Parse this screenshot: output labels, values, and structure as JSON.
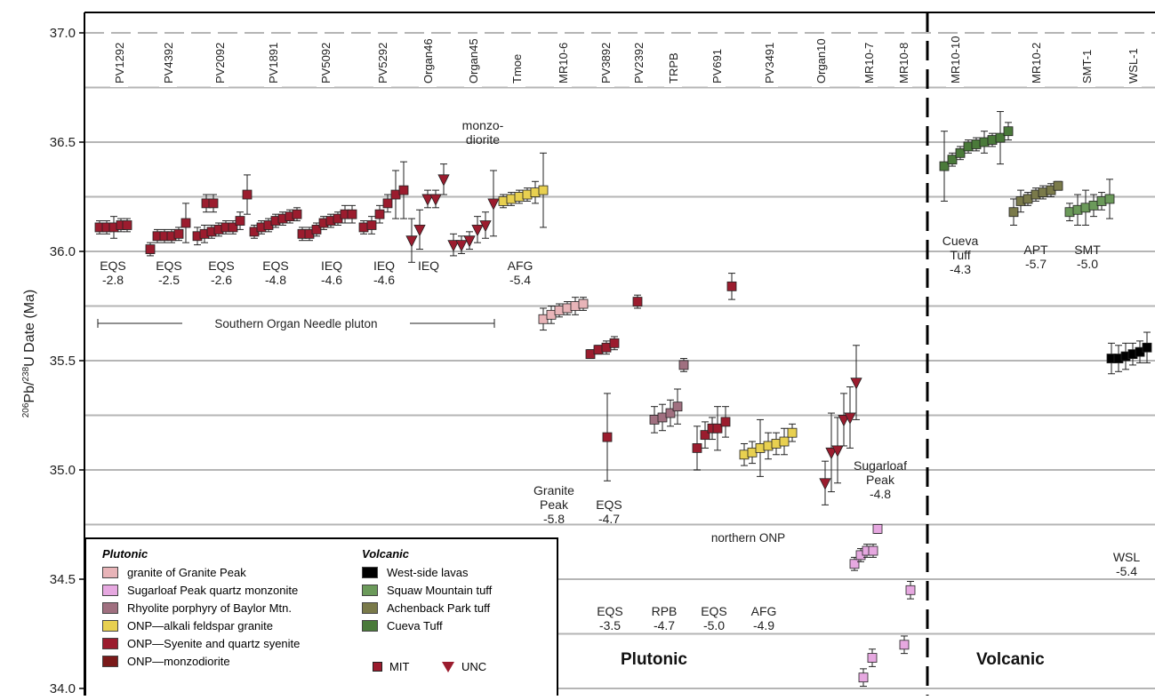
{
  "chart_data": {
    "type": "scatter",
    "ylabel_sup1": "206",
    "ylabel_mid": "Pb/",
    "ylabel_sup2": "238",
    "ylabel_end": "U Date (Ma)",
    "ylim": [
      34.0,
      37.0
    ],
    "yticks": [
      "34.0",
      "34.5",
      "35.0",
      "35.5",
      "36.0",
      "36.5",
      "37.0"
    ],
    "ytick_values": [
      34.0,
      34.5,
      35.0,
      35.5,
      36.0,
      36.5,
      37.0
    ],
    "grid": true,
    "colors": {
      "granite_peak": "#e8b4b8",
      "sugarloaf": "#e6a8e0",
      "rhyolite": "#a07080",
      "afg": "#e8d050",
      "syenite": "#9b1c2e",
      "monzodiorite": "#7a1a1a",
      "west_side": "#000000",
      "squaw": "#6b9a5a",
      "achenback": "#7a7a4a",
      "cueva": "#4a7a3a"
    },
    "samples": [
      {
        "id": "PV1292",
        "fill": "#9b1c2e",
        "shape": "square",
        "values": [
          36.11,
          36.11,
          36.11,
          36.12,
          36.12,
          36.22,
          36.22
        ],
        "err": [
          0.03,
          0.03,
          0.05,
          0.03,
          0.03,
          0.04,
          0.04
        ]
      },
      {
        "id": "PV4392",
        "fill": "#9b1c2e",
        "shape": "square",
        "values": [
          36.01,
          36.07,
          36.07,
          36.07,
          36.08,
          36.13
        ],
        "err": [
          0.03,
          0.03,
          0.03,
          0.03,
          0.03,
          0.09
        ]
      },
      {
        "id": "PV2092",
        "fill": "#9b1c2e",
        "shape": "square",
        "values": [
          36.07,
          36.08,
          36.09,
          36.1,
          36.11,
          36.11,
          36.14,
          36.26
        ],
        "err": [
          0.04,
          0.04,
          0.03,
          0.03,
          0.03,
          0.03,
          0.04,
          0.09
        ]
      },
      {
        "id": "PV1891",
        "fill": "#9b1c2e",
        "shape": "square",
        "values": [
          36.09,
          36.11,
          36.12,
          36.14,
          36.15,
          36.16,
          36.17
        ],
        "err": [
          0.03,
          0.03,
          0.03,
          0.03,
          0.03,
          0.03,
          0.03
        ]
      },
      {
        "id": "PV5092",
        "fill": "#9b1c2e",
        "shape": "square",
        "values": [
          36.08,
          36.08,
          36.1,
          36.13,
          36.14,
          36.15,
          36.17,
          36.17
        ],
        "err": [
          0.03,
          0.03,
          0.03,
          0.03,
          0.03,
          0.03,
          0.04,
          0.04
        ]
      },
      {
        "id": "PV5292",
        "fill": "#9b1c2e",
        "shape": "square",
        "values": [
          36.11,
          36.12,
          36.17,
          36.22,
          36.26,
          36.28
        ],
        "err": [
          0.03,
          0.04,
          0.04,
          0.04,
          0.11,
          0.13
        ]
      },
      {
        "id": "Organ46",
        "fill": "#9b1c2e",
        "shape": "triangle",
        "values": [
          36.05,
          36.1,
          36.24,
          36.24,
          36.33
        ],
        "err": [
          0.1,
          0.09,
          0.04,
          0.04,
          0.07
        ]
      },
      {
        "id": "Organ45",
        "fill": "#9b1c2e",
        "shape": "triangle",
        "values": [
          36.03,
          36.03,
          36.05,
          36.1,
          36.12,
          36.22
        ],
        "err": [
          0.05,
          0.04,
          0.04,
          0.06,
          0.06,
          0.15
        ]
      },
      {
        "id": "Tmoe",
        "fill": "#e8d050",
        "shape": "square",
        "values": [
          36.23,
          36.24,
          36.25,
          36.26,
          36.27,
          36.28
        ],
        "err": [
          0.03,
          0.03,
          0.03,
          0.03,
          0.05,
          0.17
        ]
      },
      {
        "id": "MR10-6",
        "fill": "#e8b4b8",
        "shape": "square",
        "values": [
          35.69,
          35.71,
          35.73,
          35.74,
          35.75,
          35.76
        ],
        "err": [
          0.05,
          0.04,
          0.03,
          0.03,
          0.04,
          0.03
        ]
      },
      {
        "id": "PV3892",
        "fill": "#9b1c2e",
        "shape": "square",
        "values": [
          35.53,
          35.55,
          35.56,
          35.58
        ],
        "err": [
          0.02,
          0.02,
          0.03,
          0.03
        ]
      },
      {
        "id": "PV2392",
        "fill": "#9b1c2e",
        "shape": "square",
        "values": [
          35.77,
          35.15
        ],
        "err": [
          0.03,
          0.2
        ]
      },
      {
        "id": "TRPB",
        "fill": "#a07080",
        "shape": "square",
        "values": [
          35.23,
          35.24,
          35.26,
          35.29,
          35.48
        ],
        "err": [
          0.06,
          0.06,
          0.06,
          0.08,
          0.03
        ]
      },
      {
        "id": "PV691",
        "fill": "#9b1c2e",
        "shape": "square",
        "values": [
          35.1,
          35.16,
          35.19,
          35.19,
          35.22,
          35.84
        ],
        "err": [
          0.1,
          0.06,
          0.05,
          0.1,
          0.07,
          0.06
        ]
      },
      {
        "id": "PV3491",
        "fill": "#e8d050",
        "shape": "square",
        "values": [
          35.07,
          35.08,
          35.1,
          35.11,
          35.12,
          35.13,
          35.17
        ],
        "err": [
          0.05,
          0.05,
          0.13,
          0.06,
          0.05,
          0.06,
          0.04
        ]
      },
      {
        "id": "Organ10",
        "fill": "#9b1c2e",
        "shape": "triangle",
        "values": [
          34.94,
          35.08,
          35.09,
          35.23,
          35.24,
          35.4
        ],
        "err": [
          0.1,
          0.18,
          0.15,
          0.12,
          0.14,
          0.17
        ]
      },
      {
        "id": "MR10-7",
        "fill": "#e6a8e0",
        "shape": "square",
        "values": [
          34.57,
          34.61,
          34.63,
          34.63
        ],
        "err": [
          0.03,
          0.03,
          0.03,
          0.03
        ]
      },
      {
        "id": "MR10-8",
        "fill": "#e6a8e0",
        "shape": "square",
        "values": [
          34.73,
          34.45,
          34.2,
          34.14,
          34.05
        ],
        "err": [
          0.02,
          0.04,
          0.04,
          0.04,
          0.04
        ]
      },
      {
        "id": "MR10-10",
        "fill": "#4a7a3a",
        "shape": "square",
        "values": [
          36.39,
          36.42,
          36.45,
          36.48,
          36.49,
          36.5,
          36.51,
          36.52,
          36.55
        ],
        "err": [
          0.16,
          0.03,
          0.03,
          0.03,
          0.03,
          0.05,
          0.03,
          0.12,
          0.04
        ]
      },
      {
        "id": "MR10-2",
        "fill": "#7a7a4a",
        "shape": "square",
        "values": [
          36.18,
          36.23,
          36.24,
          36.26,
          36.27,
          36.28,
          36.3
        ],
        "err": [
          0.06,
          0.05,
          0.03,
          0.03,
          0.03,
          0.03,
          0.02
        ]
      },
      {
        "id": "SMT-1",
        "fill": "#6b9a5a",
        "shape": "square",
        "values": [
          36.18,
          36.19,
          36.2,
          36.21,
          36.23,
          36.24
        ],
        "err": [
          0.04,
          0.07,
          0.08,
          0.05,
          0.04,
          0.09
        ]
      },
      {
        "id": "WSL-1",
        "fill": "#000000",
        "shape": "square",
        "values": [
          35.51,
          35.51,
          35.52,
          35.53,
          35.54,
          35.56
        ],
        "err": [
          0.07,
          0.06,
          0.06,
          0.05,
          0.05,
          0.07
        ]
      }
    ],
    "annotations": [
      {
        "text": "EQS",
        "text2": "-2.8"
      },
      {
        "text": "EQS",
        "text2": "-2.5"
      },
      {
        "text": "EQS",
        "text2": "-2.6"
      },
      {
        "text": "EQS",
        "text2": "-4.8"
      },
      {
        "text": "IEQ",
        "text2": "-4.6"
      },
      {
        "text": "IEQ",
        "text2": "-4.6"
      },
      {
        "text": "IEQ",
        "text2": ""
      },
      {
        "text": "AFG",
        "text2": "-5.4"
      },
      {
        "text": "monzo-",
        "text2": "diorite"
      },
      {
        "text": "Granite",
        "text2": "Peak",
        "text3": "-5.8"
      },
      {
        "text": "EQS",
        "text2": "-4.7"
      },
      {
        "text": "EQS",
        "text2": "-3.5"
      },
      {
        "text": "RPB",
        "text2": "-4.7"
      },
      {
        "text": "EQS",
        "text2": "-5.0"
      },
      {
        "text": "AFG",
        "text2": "-4.9"
      },
      {
        "text": "Sugarloaf",
        "text2": "Peak",
        "text3": "-4.8"
      },
      {
        "text": "Cueva",
        "text2": "Tuff",
        "text3": "-4.3"
      },
      {
        "text": "APT",
        "text2": "-5.7"
      },
      {
        "text": "SMT",
        "text2": "-5.0"
      },
      {
        "text": "WSL",
        "text2": "-5.4"
      }
    ],
    "ranges": {
      "southern": "Southern Organ Needle pluton",
      "northern": "northern ONP"
    },
    "section_labels": {
      "plutonic": "Plutonic",
      "volcanic": "Volcanic"
    }
  },
  "legend": {
    "plutonic_heading": "Plutonic",
    "volcanic_heading": "Volcanic",
    "plutonic_items": [
      {
        "label": "granite of Granite Peak",
        "color": "#e8b4b8"
      },
      {
        "label": "Sugarloaf Peak quartz monzonite",
        "color": "#e6a8e0"
      },
      {
        "label": "Rhyolite porphyry of Baylor Mtn.",
        "color": "#a07080"
      },
      {
        "label": "ONP—alkali feldspar granite",
        "color": "#e8d050"
      },
      {
        "label": "ONP—Syenite and quartz syenite",
        "color": "#9b1c2e"
      },
      {
        "label": "ONP—monzodiorite",
        "color": "#7a1a1a"
      }
    ],
    "volcanic_items": [
      {
        "label": "West-side lavas",
        "color": "#000000"
      },
      {
        "label": "Squaw Mountain tuff",
        "color": "#6b9a5a"
      },
      {
        "label": "Achenback Park tuff",
        "color": "#7a7a4a"
      },
      {
        "label": "Cueva Tuff",
        "color": "#4a7a3a"
      }
    ],
    "mit_label": "MIT",
    "unc_label": "UNC"
  }
}
